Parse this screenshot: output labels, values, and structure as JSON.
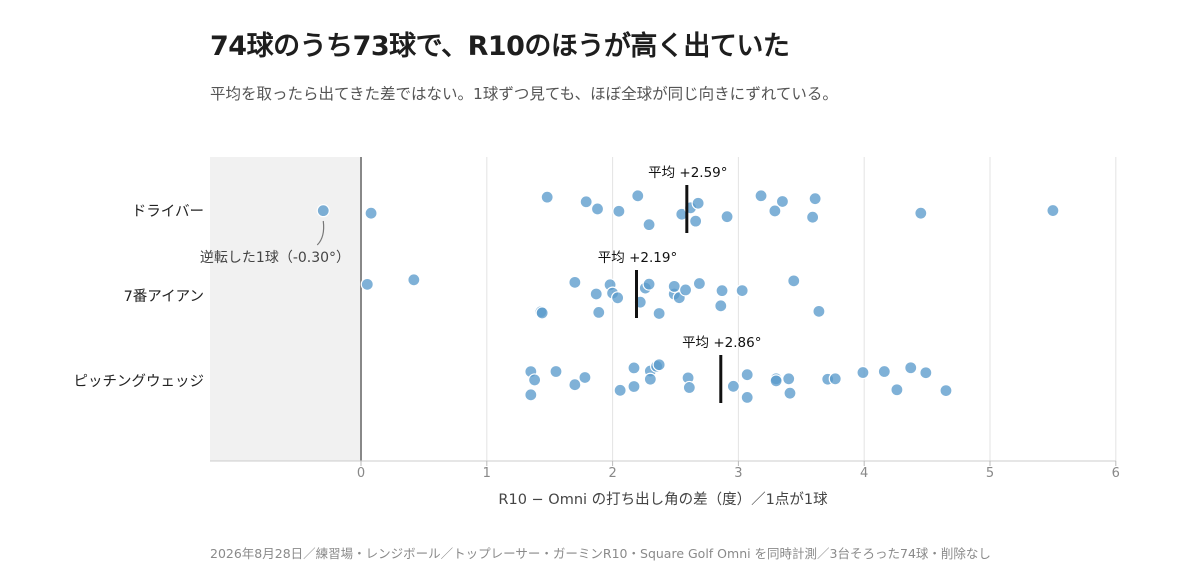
{
  "title": "74球のうち73球で、R10のほうが高く出ていた",
  "subtitle": "平均を取ったら出てきた差ではない。1球ずつ見ても、ほぼ全球が同じ向きにずれている。",
  "footnote": "2026年8月28日／練習場・レンジボール／トップレーサー・ガーミンR10・Square Golf Omni を同時計測／3台そろった74球・削除なし",
  "chart_data": {
    "type": "scatter",
    "title": "74球のうち73球で、R10のほうが高く出ていた",
    "subtitle": "平均を取ったら出てきた差ではない。1球ずつ見ても、ほぼ全球が同じ向きにずれている。",
    "xlabel": "R10 − Omni の打ち出し角の差（度）／1点が1球",
    "ylabel": "",
    "xlim": [
      -1.2,
      6
    ],
    "xticks": [
      0,
      1,
      2,
      3,
      4,
      5,
      6
    ],
    "grid": "vertical",
    "negative_region_shaded": true,
    "point_color": "#5b9bcc",
    "mean_color": "#111111",
    "categories": [
      "ドライバー",
      "7番アイアン",
      "ピッチングウェッジ"
    ],
    "series": [
      {
        "name": "ドライバー",
        "mean": 2.59,
        "mean_label": "平均 +2.59°",
        "values": [
          -0.3,
          0.08,
          1.48,
          1.79,
          1.88,
          2.05,
          2.2,
          2.29,
          2.55,
          2.62,
          2.68,
          2.66,
          2.91,
          3.18,
          3.29,
          3.35,
          3.59,
          3.61,
          4.45,
          5.5
        ]
      },
      {
        "name": "7番アイアン",
        "mean": 2.19,
        "mean_label": "平均 +2.19°",
        "values": [
          0.05,
          0.42,
          1.43,
          1.44,
          1.7,
          1.87,
          1.89,
          1.98,
          2.0,
          2.04,
          2.22,
          2.26,
          2.29,
          2.37,
          2.49,
          2.49,
          2.53,
          2.58,
          2.69,
          2.86,
          2.87,
          3.03,
          3.44,
          3.64
        ]
      },
      {
        "name": "ピッチングウェッジ",
        "mean": 2.86,
        "mean_label": "平均 +2.86°",
        "values": [
          1.35,
          1.35,
          1.38,
          1.55,
          1.7,
          1.78,
          2.06,
          2.17,
          2.17,
          2.3,
          2.3,
          2.35,
          2.37,
          2.6,
          2.61,
          2.96,
          3.07,
          3.07,
          3.3,
          3.3,
          3.4,
          3.41,
          3.71,
          3.77,
          3.99,
          4.16,
          4.26,
          4.37,
          4.49,
          4.65
        ]
      }
    ],
    "annotation": {
      "text": "逆転した1球（-0.30°）",
      "series": "ドライバー",
      "x": -0.3
    }
  }
}
